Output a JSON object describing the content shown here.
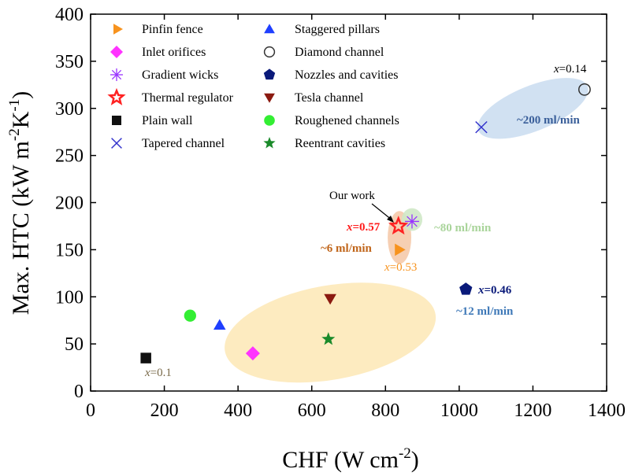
{
  "chart_data": {
    "type": "scatter",
    "xlabel_main": "CHF (W cm",
    "xlabel_sup": "-2",
    "xlabel_end": ")",
    "ylabel_main": "Max. HTC (kW m",
    "ylabel_sup1": "-2",
    "ylabel_mid": "K",
    "ylabel_sup2": "-1",
    "ylabel_end": ")",
    "xlim": [
      0,
      1400
    ],
    "ylim": [
      0,
      400
    ],
    "xticks": [
      0,
      200,
      400,
      600,
      800,
      1000,
      1200,
      1400
    ],
    "yticks": [
      0,
      50,
      100,
      150,
      200,
      250,
      300,
      350,
      400
    ],
    "series": [
      {
        "name": "Pinfin fence",
        "marker": "triangle-right",
        "color": "#f7931e",
        "filled": true,
        "x": 835,
        "y": 150
      },
      {
        "name": "Inlet orifices",
        "marker": "diamond",
        "color": "#ff33ff",
        "filled": true,
        "x": 440,
        "y": 40
      },
      {
        "name": "Gradient wicks",
        "marker": "asterisk",
        "color": "#9933ff",
        "filled": false,
        "x": 872,
        "y": 180
      },
      {
        "name": "Thermal regulator",
        "marker": "star-open",
        "color": "#ff2222",
        "filled": false,
        "x": 835,
        "y": 175
      },
      {
        "name": "Plain wall",
        "marker": "square",
        "color": "#111111",
        "filled": true,
        "x": 150,
        "y": 35
      },
      {
        "name": "Tapered channel",
        "marker": "x",
        "color": "#3333cc",
        "filled": false,
        "x": 1060,
        "y": 280
      },
      {
        "name": "Staggered pillars",
        "marker": "triangle-up",
        "color": "#1f3fff",
        "filled": true,
        "x": 350,
        "y": 70
      },
      {
        "name": "Diamond channel",
        "marker": "circle-open",
        "color": "#333333",
        "filled": false,
        "x": 1340,
        "y": 320
      },
      {
        "name": "Nozzles and cavities",
        "marker": "pentagon",
        "color": "#0a1a7a",
        "filled": true,
        "x": 1018,
        "y": 108
      },
      {
        "name": "Tesla channel",
        "marker": "triangle-down",
        "color": "#8b1a10",
        "filled": true,
        "x": 650,
        "y": 98
      },
      {
        "name": "Roughened channels",
        "marker": "circle",
        "color": "#33ee33",
        "filled": true,
        "x": 270,
        "y": 80
      },
      {
        "name": "Reentrant cavities",
        "marker": "star",
        "color": "#1a8a2a",
        "filled": true,
        "x": 645,
        "y": 55
      }
    ],
    "regions": [
      {
        "cx": 650,
        "cy": 62,
        "rx": 290,
        "ry": 50,
        "angle": -10,
        "color": "#fde7b5",
        "opacity": 0.85
      },
      {
        "cx": 1200,
        "cy": 300,
        "rx": 160,
        "ry": 24,
        "angle": -22,
        "color": "#c9dcf0",
        "opacity": 0.85
      },
      {
        "cx": 838,
        "cy": 163,
        "rx": 32,
        "ry": 28,
        "angle": 0,
        "color": "#f4c3a0",
        "opacity": 0.8
      },
      {
        "cx": 872,
        "cy": 182,
        "rx": 28,
        "ry": 12,
        "angle": 0,
        "color": "#cfe8c6",
        "opacity": 0.9
      }
    ],
    "annotations": {
      "our_work": "Our work",
      "x057": "=0.57",
      "x053": "=0.53",
      "x014": "=0.14",
      "x046": "=0.46",
      "x01": "=0.1",
      "x_symbol": "x",
      "flow6": "~6 ml/min",
      "flow80": "~80 ml/min",
      "flow200": "~200 ml/min",
      "flow12": "~12 ml/min"
    }
  }
}
